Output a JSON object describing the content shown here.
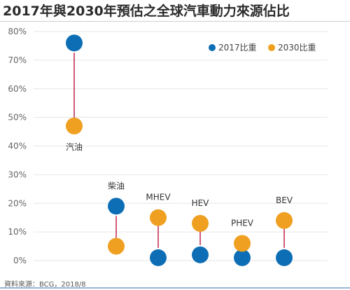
{
  "title": "2017年與2030年預估之全球汽車動力來源佔比",
  "source": "資料來源：BCG，2018/8",
  "colors": {
    "series_2017": "#0d6eb5",
    "series_2030": "#f0a020",
    "arrow": "#c2335a",
    "grid": "#e6e6e6"
  },
  "chart_data": {
    "type": "scatter",
    "title": "2017年與2030年預估之全球汽車動力來源佔比",
    "xlabel": "",
    "ylabel": "",
    "categories": [
      "汽油",
      "柴油",
      "MHEV",
      "HEV",
      "PHEV",
      "BEV"
    ],
    "series": [
      {
        "name": "2017比重",
        "values": [
          76,
          19,
          1,
          2,
          1,
          1
        ]
      },
      {
        "name": "2030比重",
        "values": [
          47,
          5,
          15,
          13,
          6,
          14
        ]
      }
    ],
    "ylim": [
      0,
      80
    ],
    "yticks": [
      "0%",
      "10%",
      "20%",
      "30%",
      "40%",
      "50%",
      "60%",
      "70%",
      "80%"
    ],
    "grid": true,
    "legend": "top-right",
    "annotations": "arrows from 2017 value to 2030 value for each category"
  }
}
